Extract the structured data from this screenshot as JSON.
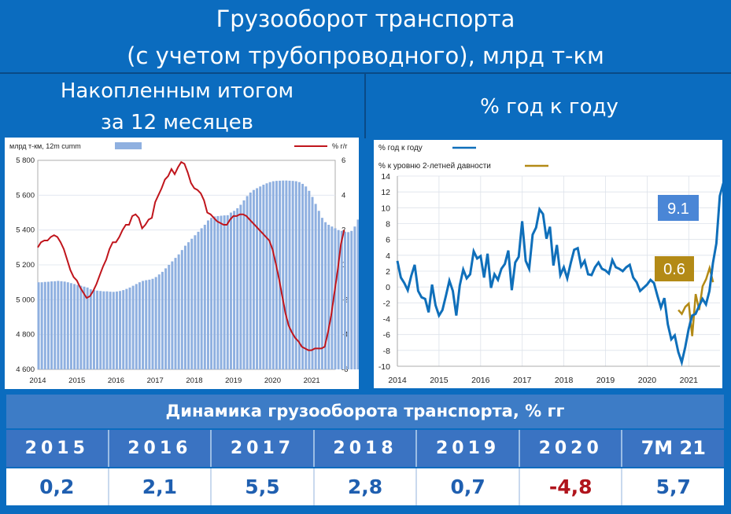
{
  "title_line1": "Грузооборот транспорта",
  "title_line2": "(с учетом трубопроводного), млрд т-км",
  "left_subtitle_line1": "Накопленным итогом",
  "left_subtitle_line2": "за 12 месяцев",
  "right_subtitle": "% год к году",
  "colors": {
    "background": "#0B6CBF",
    "bars": "#8fb0e0",
    "red_line": "#c0151c",
    "blue_line": "#0f6fba",
    "gold_line": "#b38a16",
    "callout_blue": "#4a86d6",
    "callout_gold": "#b38a16",
    "negative_value": "#b0141c"
  },
  "chart_data": [
    {
      "type": "bar",
      "legend_bar_label": "млрд т-км, 12m cumm",
      "legend_line_label": "% г/г",
      "x_tick_labels": [
        "2014",
        "2015",
        "2016",
        "2017",
        "2018",
        "2019",
        "2020",
        "2021"
      ],
      "y_left_ticks": [
        "4 600",
        "4 800",
        "5 000",
        "5 200",
        "5 400",
        "5 600",
        "5 800"
      ],
      "y_right_ticks": [
        "-6",
        "-4",
        "-2",
        "0",
        "2",
        "4",
        "6"
      ],
      "y_left_range": [
        4600,
        5800
      ],
      "y_right_range": [
        -6,
        6
      ],
      "series": [
        {
          "kind": "bar",
          "axis": "left",
          "x_start": 2014.0,
          "step": 0.0833,
          "values": [
            5100,
            5100,
            5102,
            5103,
            5105,
            5106,
            5108,
            5106,
            5104,
            5100,
            5095,
            5090,
            5085,
            5080,
            5075,
            5070,
            5060,
            5055,
            5052,
            5050,
            5048,
            5048,
            5046,
            5045,
            5047,
            5050,
            5055,
            5062,
            5070,
            5080,
            5090,
            5100,
            5108,
            5112,
            5115,
            5120,
            5130,
            5145,
            5160,
            5180,
            5200,
            5220,
            5240,
            5260,
            5285,
            5310,
            5330,
            5350,
            5370,
            5390,
            5410,
            5430,
            5455,
            5470,
            5478,
            5480,
            5482,
            5484,
            5485,
            5500,
            5510,
            5525,
            5545,
            5570,
            5595,
            5615,
            5630,
            5640,
            5650,
            5660,
            5668,
            5675,
            5680,
            5682,
            5683,
            5684,
            5684,
            5683,
            5682,
            5680,
            5675,
            5665,
            5650,
            5625,
            5590,
            5550,
            5510,
            5470,
            5445,
            5430,
            5420,
            5410,
            5400,
            5395,
            5390,
            5388,
            5395,
            5420,
            5460,
            5530,
            5580
          ]
        },
        {
          "kind": "line",
          "axis": "right",
          "x_start": 2014.0,
          "step": 0.0833,
          "values": [
            1.0,
            1.3,
            1.4,
            1.4,
            1.6,
            1.7,
            1.6,
            1.3,
            0.9,
            0.3,
            -0.3,
            -0.7,
            -0.9,
            -1.3,
            -1.6,
            -1.9,
            -1.8,
            -1.5,
            -1.1,
            -0.6,
            -0.1,
            0.3,
            0.9,
            1.3,
            1.3,
            1.6,
            2.0,
            2.3,
            2.3,
            2.8,
            2.9,
            2.7,
            2.1,
            2.3,
            2.6,
            2.7,
            3.6,
            4.0,
            4.4,
            4.9,
            5.1,
            5.5,
            5.2,
            5.6,
            5.9,
            5.8,
            5.3,
            4.7,
            4.4,
            4.3,
            4.1,
            3.7,
            3.0,
            2.9,
            2.7,
            2.5,
            2.4,
            2.3,
            2.3,
            2.6,
            2.8,
            2.8,
            2.9,
            2.9,
            2.8,
            2.6,
            2.4,
            2.2,
            2.0,
            1.8,
            1.6,
            1.4,
            0.9,
            0.1,
            -0.8,
            -1.8,
            -2.8,
            -3.5,
            -3.9,
            -4.2,
            -4.4,
            -4.7,
            -4.8,
            -4.9,
            -4.9,
            -4.8,
            -4.8,
            -4.8,
            -4.7,
            -3.9,
            -2.9,
            -1.6,
            -0.3,
            1.2,
            2.0
          ]
        }
      ]
    },
    {
      "type": "line",
      "legend_series1": "% год к году",
      "legend_series2": "% к уровню 2-летней давности",
      "x_tick_labels": [
        "2014",
        "2015",
        "2016",
        "2017",
        "2018",
        "2019",
        "2020",
        "2021"
      ],
      "y_ticks": [
        "-10",
        "-8",
        "-6",
        "-4",
        "-2",
        "0",
        "2",
        "4",
        "6",
        "8",
        "10",
        "12",
        "14"
      ],
      "y_range": [
        -10,
        14
      ],
      "callout_yoy": "9.1",
      "callout_2y": "0.6",
      "series": [
        {
          "name": "% год к году",
          "x_start": 2014.0,
          "step": 0.0833,
          "values": [
            3.3,
            1.2,
            0.5,
            -0.4,
            1.4,
            2.8,
            -0.5,
            -1.3,
            -1.5,
            -3.2,
            0.3,
            -2.3,
            -3.6,
            -2.9,
            -1.1,
            0.8,
            -0.5,
            -3.6,
            0.2,
            2.2,
            1.1,
            1.6,
            4.5,
            3.6,
            3.9,
            1.2,
            4.2,
            -0.1,
            1.6,
            0.9,
            2.3,
            2.9,
            4.6,
            -0.4,
            3.1,
            3.8,
            8.3,
            3.3,
            2.3,
            6.6,
            7.5,
            9.8,
            9.2,
            6.1,
            7.6,
            2.7,
            5.3,
            1.5,
            2.5,
            1.1,
            3.0,
            4.7,
            4.9,
            2.6,
            3.3,
            1.6,
            1.5,
            2.5,
            3.1,
            2.3,
            2.1,
            1.7,
            3.4,
            2.5,
            2.3,
            2.0,
            2.5,
            2.8,
            1.2,
            0.6,
            -0.5,
            -0.1,
            0.3,
            0.9,
            0.5,
            -1.1,
            -2.6,
            -1.4,
            -4.7,
            -6.6,
            -6.1,
            -8.2,
            -9.5,
            -7.6,
            -5.3,
            -3.6,
            -3.4,
            -2.4,
            -1.5,
            -2.2,
            -0.5,
            3.0,
            5.5,
            11.5,
            13.1,
            9.1
          ]
        },
        {
          "name": "% к уровню 2-летней давности",
          "x_start": 2020.75,
          "step": 0.0833,
          "values": [
            -2.9,
            -3.4,
            -2.5,
            -2.1,
            -6.2,
            -0.9,
            -2.9,
            0.1,
            1.0,
            2.4,
            0.6
          ]
        }
      ]
    }
  ],
  "table": {
    "header": "Динамика грузооборота транспорта, % гг",
    "years": [
      "2015",
      "2016",
      "2017",
      "2018",
      "2019",
      "2020",
      "7M 21"
    ],
    "values": [
      "0,2",
      "2,1",
      "5,5",
      "2,8",
      "0,7",
      "-4,8",
      "5,7"
    ]
  }
}
